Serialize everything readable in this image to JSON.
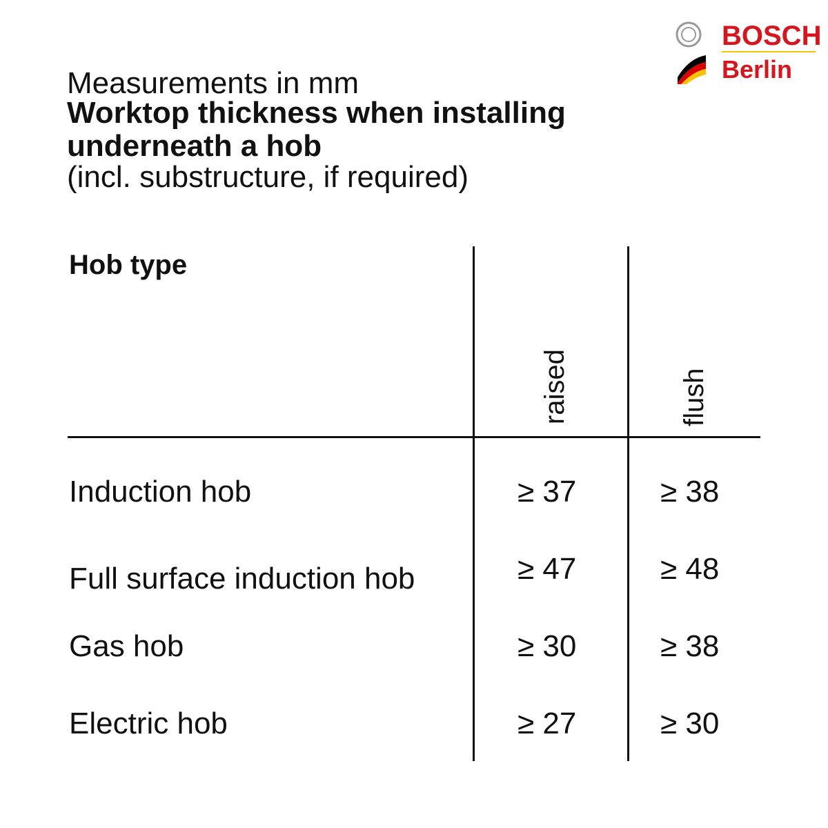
{
  "logo": {
    "brand": "BOSCH",
    "sub": "Berlin"
  },
  "header": {
    "units": "Measurements in mm",
    "title": "Worktop thickness when installing underneath a hob",
    "note": "(incl. substructure, if required)"
  },
  "table": {
    "header": [
      "Hob type",
      "raised",
      "flush"
    ],
    "rows": [
      [
        "Induction hob",
        "≥ 37",
        "≥ 38"
      ],
      [
        "Full surface induction hob",
        "≥ 47",
        "≥ 48"
      ],
      [
        "Gas hob",
        "≥ 30",
        "≥ 38"
      ],
      [
        "Electric hob",
        "≥ 27",
        "≥ 30"
      ]
    ]
  }
}
